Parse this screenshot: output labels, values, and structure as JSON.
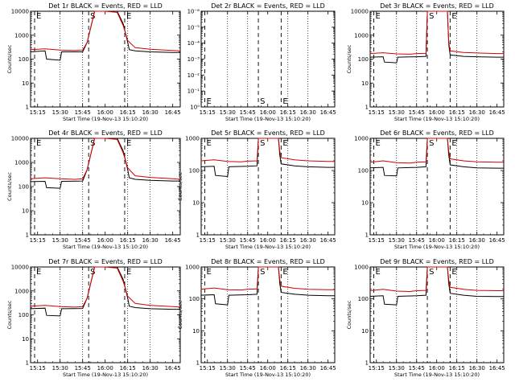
{
  "start_time_label": "Start Time (19-Nov-13 15:10:20)",
  "colors": {
    "events": "#000000",
    "lld": "#d40000",
    "axis": "#000000"
  },
  "chart_data": [
    {
      "type": "line",
      "title": "Det 1r BLACK = Events, RED = LLD",
      "ylabel": "Counts/sec",
      "xlabel": "Start Time (19-Nov-13 15:10:20)",
      "scale": "log",
      "ylim": [
        1,
        10000
      ],
      "yticks": [
        "1",
        "10",
        "100",
        "1000",
        "10000"
      ],
      "xticks": [
        "15:15",
        "15:30",
        "15:45",
        "16:00",
        "16:15",
        "16:30",
        "16:45"
      ],
      "markers": [
        "E",
        "S",
        "E"
      ],
      "profile": "big",
      "series": [
        {
          "name": "BLACK = Events",
          "x": [
            "15:10",
            "15:20",
            "15:21",
            "15:30",
            "15:31",
            "15:45",
            "15:48",
            "15:53",
            "16:00",
            "16:08",
            "16:12",
            "16:15",
            "16:16",
            "16:20",
            "16:30",
            "16:45",
            "16:50"
          ],
          "values": [
            200,
            220,
            100,
            90,
            200,
            200,
            500,
            10000,
            10000,
            10000,
            3000,
            500,
            250,
            220,
            200,
            190,
            190
          ]
        },
        {
          "name": "RED = LLD",
          "x": [
            "15:10",
            "15:20",
            "15:30",
            "15:40",
            "15:45",
            "15:48",
            "15:53",
            "16:00",
            "16:08",
            "16:12",
            "16:15",
            "16:20",
            "16:30",
            "16:45",
            "16:50"
          ],
          "values": [
            250,
            270,
            240,
            230,
            240,
            500,
            10000,
            10000,
            9000,
            2500,
            600,
            300,
            260,
            230,
            220
          ]
        }
      ]
    },
    {
      "type": "line",
      "title": "Det 2r BLACK = Events, RED = LLD",
      "ylabel": "",
      "xlabel": "Start Time (19-Nov-13 15:10:20)",
      "scale": "log",
      "ylim": [
        1e-06,
        1
      ],
      "yticks": [
        "10⁰",
        "10⁻¹",
        "10⁻²",
        "10⁻³",
        "10⁻⁴",
        "10⁻⁵",
        "10⁻⁶"
      ],
      "xticks": [
        "15:15",
        "15:30",
        "15:45",
        "16:00",
        "16:15",
        "16:30",
        "16:45"
      ],
      "markers": [
        "E",
        "S",
        "E"
      ],
      "profile": "empty",
      "series": []
    },
    {
      "type": "line",
      "title": "Det 3r BLACK = Events, RED = LLD",
      "ylabel": "Counts/sec",
      "xlabel": "Start Time (19-Nov-13 15:10:20)",
      "scale": "log",
      "ylim": [
        1,
        10000
      ],
      "yticks": [
        "1",
        "10",
        "100",
        "1000",
        "10000"
      ],
      "xticks": [
        "15:15",
        "15:30",
        "15:45",
        "16:00",
        "16:15",
        "16:30",
        "16:45"
      ],
      "markers": [
        "E",
        "S",
        "E"
      ],
      "profile": "small",
      "series": [
        {
          "name": "BLACK = Events",
          "x": [
            "15:10",
            "15:20",
            "15:21",
            "15:30",
            "15:31",
            "15:45",
            "15:52",
            "15:53",
            "15:54",
            "16:00",
            "16:08",
            "16:09",
            "16:10",
            "16:20",
            "16:30",
            "16:45",
            "16:50"
          ],
          "values": [
            120,
            125,
            75,
            70,
            120,
            125,
            130,
            10000,
            10000,
            10000,
            10000,
            400,
            150,
            130,
            125,
            120,
            120
          ]
        },
        {
          "name": "RED = LLD",
          "x": [
            "15:10",
            "15:20",
            "15:30",
            "15:40",
            "15:45",
            "15:52",
            "15:53",
            "15:54",
            "16:00",
            "16:08",
            "16:09",
            "16:10",
            "16:20",
            "16:30",
            "16:45",
            "16:50"
          ],
          "values": [
            170,
            185,
            165,
            160,
            170,
            175,
            10000,
            10000,
            10000,
            10000,
            500,
            220,
            190,
            180,
            170,
            170
          ]
        }
      ]
    },
    {
      "type": "line",
      "title": "Det 4r BLACK = Events, RED = LLD",
      "ylabel": "Counts/sec",
      "xlabel": "Start Time (19-Nov-13 15:10:20)",
      "scale": "log",
      "ylim": [
        1,
        10000
      ],
      "yticks": [
        "1",
        "10",
        "100",
        "1000",
        "10000"
      ],
      "xticks": [
        "15:15",
        "15:30",
        "15:45",
        "16:00",
        "16:15",
        "16:30",
        "16:45"
      ],
      "markers": [
        "E",
        "S",
        "E"
      ],
      "profile": "big",
      "series": [
        {
          "name": "BLACK = Events",
          "x": [
            "15:10",
            "15:20",
            "15:21",
            "15:30",
            "15:31",
            "15:45",
            "15:48",
            "15:53",
            "16:00",
            "16:08",
            "16:12",
            "16:15",
            "16:16",
            "16:20",
            "16:30",
            "16:45",
            "16:50"
          ],
          "values": [
            160,
            165,
            90,
            85,
            165,
            170,
            500,
            10000,
            10000,
            10000,
            3000,
            500,
            230,
            200,
            180,
            170,
            170
          ]
        },
        {
          "name": "RED = LLD",
          "x": [
            "15:10",
            "15:20",
            "15:30",
            "15:40",
            "15:45",
            "15:48",
            "15:53",
            "16:00",
            "16:08",
            "16:12",
            "16:15",
            "16:20",
            "16:30",
            "16:45",
            "16:50"
          ],
          "values": [
            210,
            230,
            210,
            200,
            210,
            500,
            10000,
            10000,
            9000,
            2500,
            600,
            280,
            240,
            210,
            200
          ]
        }
      ]
    },
    {
      "type": "line",
      "title": "Det 5r BLACK = Events, RED = LLD",
      "ylabel": "Counts/sec",
      "xlabel": "Start Time (19-Nov-13 15:10:20)",
      "scale": "log",
      "ylim": [
        1,
        1000
      ],
      "yticks": [
        "1",
        "10",
        "100",
        "1000"
      ],
      "xticks": [
        "15:15",
        "15:30",
        "15:45",
        "16:00",
        "16:15",
        "16:30",
        "16:45"
      ],
      "markers": [
        "E",
        "S",
        "E"
      ],
      "profile": "small",
      "series": [
        {
          "name": "BLACK = Events",
          "x": [
            "15:10",
            "15:20",
            "15:21",
            "15:30",
            "15:31",
            "15:45",
            "15:52",
            "15:53",
            "15:54",
            "16:00",
            "16:08",
            "16:09",
            "16:10",
            "16:20",
            "16:30",
            "16:45",
            "16:50"
          ],
          "values": [
            130,
            135,
            70,
            65,
            130,
            135,
            140,
            1000,
            1000,
            1000,
            1000,
            300,
            160,
            140,
            130,
            125,
            125
          ]
        },
        {
          "name": "RED = LLD",
          "x": [
            "15:10",
            "15:20",
            "15:30",
            "15:40",
            "15:45",
            "15:52",
            "15:53",
            "15:54",
            "16:00",
            "16:08",
            "16:09",
            "16:10",
            "16:20",
            "16:30",
            "16:45",
            "16:50"
          ],
          "values": [
            200,
            215,
            190,
            185,
            195,
            200,
            1000,
            1000,
            1000,
            1000,
            400,
            250,
            215,
            200,
            190,
            190
          ]
        }
      ]
    },
    {
      "type": "line",
      "title": "Det 6r BLACK = Events, RED = LLD",
      "ylabel": "",
      "xlabel": "Start Time (19-Nov-13 15:10:20)",
      "scale": "log",
      "ylim": [
        1,
        1000
      ],
      "yticks": [
        "1",
        "10",
        "100",
        "1000"
      ],
      "xticks": [
        "15:15",
        "15:30",
        "15:45",
        "16:00",
        "16:15",
        "16:30",
        "16:45"
      ],
      "markers": [
        "E",
        "S",
        "E"
      ],
      "profile": "small",
      "series": [
        {
          "name": "BLACK = Events",
          "x": [
            "15:10",
            "15:20",
            "15:21",
            "15:30",
            "15:31",
            "15:45",
            "15:52",
            "15:53",
            "15:54",
            "16:00",
            "16:08",
            "16:09",
            "16:10",
            "16:20",
            "16:30",
            "16:45",
            "16:50"
          ],
          "values": [
            120,
            125,
            70,
            68,
            120,
            125,
            130,
            1000,
            1000,
            1000,
            1000,
            300,
            150,
            130,
            120,
            118,
            118
          ]
        },
        {
          "name": "RED = LLD",
          "x": [
            "15:10",
            "15:20",
            "15:30",
            "15:40",
            "15:45",
            "15:52",
            "15:53",
            "15:54",
            "16:00",
            "16:08",
            "16:09",
            "16:10",
            "16:20",
            "16:30",
            "16:45",
            "16:50"
          ],
          "values": [
            180,
            200,
            175,
            170,
            180,
            185,
            1000,
            1000,
            1000,
            1000,
            400,
            230,
            200,
            185,
            180,
            180
          ]
        }
      ]
    },
    {
      "type": "line",
      "title": "Det 7r BLACK = Events, RED = LLD",
      "ylabel": "Counts/sec",
      "xlabel": "Start Time (19-Nov-13 15:10:20)",
      "scale": "log",
      "ylim": [
        1,
        10000
      ],
      "yticks": [
        "1",
        "10",
        "100",
        "1000",
        "10000"
      ],
      "xticks": [
        "15:15",
        "15:30",
        "15:45",
        "16:00",
        "16:15",
        "16:30",
        "16:45"
      ],
      "markers": [
        "E",
        "S",
        "E"
      ],
      "profile": "big",
      "series": [
        {
          "name": "BLACK = Events",
          "x": [
            "15:10",
            "15:20",
            "15:21",
            "15:30",
            "15:31",
            "15:45",
            "15:48",
            "15:53",
            "16:00",
            "16:08",
            "16:12",
            "16:15",
            "16:16",
            "16:20",
            "16:30",
            "16:45",
            "16:50"
          ],
          "values": [
            180,
            190,
            95,
            90,
            180,
            185,
            500,
            10000,
            10000,
            10000,
            3000,
            500,
            230,
            200,
            180,
            170,
            170
          ]
        },
        {
          "name": "RED = LLD",
          "x": [
            "15:10",
            "15:20",
            "15:30",
            "15:40",
            "15:45",
            "15:48",
            "15:53",
            "16:00",
            "16:08",
            "16:12",
            "16:15",
            "16:20",
            "16:30",
            "16:45",
            "16:50"
          ],
          "values": [
            230,
            250,
            220,
            210,
            220,
            500,
            10000,
            10000,
            9000,
            2500,
            600,
            300,
            250,
            220,
            210
          ]
        }
      ]
    },
    {
      "type": "line",
      "title": "Det 8r BLACK = Events, RED = LLD",
      "ylabel": "Counts/sec",
      "xlabel": "Start Time (19-Nov-13 15:10:20)",
      "scale": "log",
      "ylim": [
        1,
        1000
      ],
      "yticks": [
        "1",
        "10",
        "100",
        "1000"
      ],
      "xticks": [
        "15:15",
        "15:30",
        "15:45",
        "16:00",
        "16:15",
        "16:30",
        "16:45"
      ],
      "markers": [
        "E",
        "S",
        "E"
      ],
      "profile": "small",
      "series": [
        {
          "name": "BLACK = Events",
          "x": [
            "15:10",
            "15:20",
            "15:21",
            "15:30",
            "15:31",
            "15:45",
            "15:52",
            "15:53",
            "15:54",
            "16:00",
            "16:08",
            "16:09",
            "16:10",
            "16:20",
            "16:30",
            "16:45",
            "16:50"
          ],
          "values": [
            130,
            135,
            70,
            65,
            130,
            135,
            140,
            1000,
            1000,
            1000,
            1000,
            300,
            160,
            140,
            130,
            125,
            125
          ]
        },
        {
          "name": "RED = LLD",
          "x": [
            "15:10",
            "15:20",
            "15:30",
            "15:40",
            "15:45",
            "15:52",
            "15:53",
            "15:54",
            "16:00",
            "16:08",
            "16:09",
            "16:10",
            "16:20",
            "16:30",
            "16:45",
            "16:50"
          ],
          "values": [
            200,
            220,
            195,
            190,
            200,
            205,
            1000,
            1000,
            1000,
            1000,
            400,
            250,
            215,
            200,
            195,
            195
          ]
        }
      ]
    },
    {
      "type": "line",
      "title": "Det 9r BLACK = Events, RED = LLD",
      "ylabel": "Counts/sec",
      "xlabel": "Start Time (19-Nov-13 15:10:20)",
      "scale": "log",
      "ylim": [
        1,
        1000
      ],
      "yticks": [
        "1",
        "10",
        "100",
        "1000"
      ],
      "xticks": [
        "15:15",
        "15:30",
        "15:45",
        "16:00",
        "16:15",
        "16:30",
        "16:45"
      ],
      "markers": [
        "E",
        "S",
        "E"
      ],
      "profile": "small",
      "series": [
        {
          "name": "BLACK = Events",
          "x": [
            "15:10",
            "15:20",
            "15:21",
            "15:30",
            "15:31",
            "15:45",
            "15:52",
            "15:53",
            "15:54",
            "16:00",
            "16:08",
            "16:09",
            "16:10",
            "16:20",
            "16:30",
            "16:45",
            "16:50"
          ],
          "values": [
            120,
            125,
            68,
            65,
            120,
            125,
            130,
            1000,
            1000,
            1000,
            1000,
            300,
            150,
            130,
            120,
            118,
            118
          ]
        },
        {
          "name": "RED = LLD",
          "x": [
            "15:10",
            "15:20",
            "15:30",
            "15:40",
            "15:45",
            "15:52",
            "15:53",
            "15:54",
            "16:00",
            "16:08",
            "16:09",
            "16:10",
            "16:20",
            "16:30",
            "16:45",
            "16:50"
          ],
          "values": [
            180,
            200,
            175,
            170,
            180,
            185,
            1000,
            1000,
            1000,
            1000,
            400,
            230,
            200,
            185,
            180,
            180
          ]
        }
      ]
    }
  ]
}
